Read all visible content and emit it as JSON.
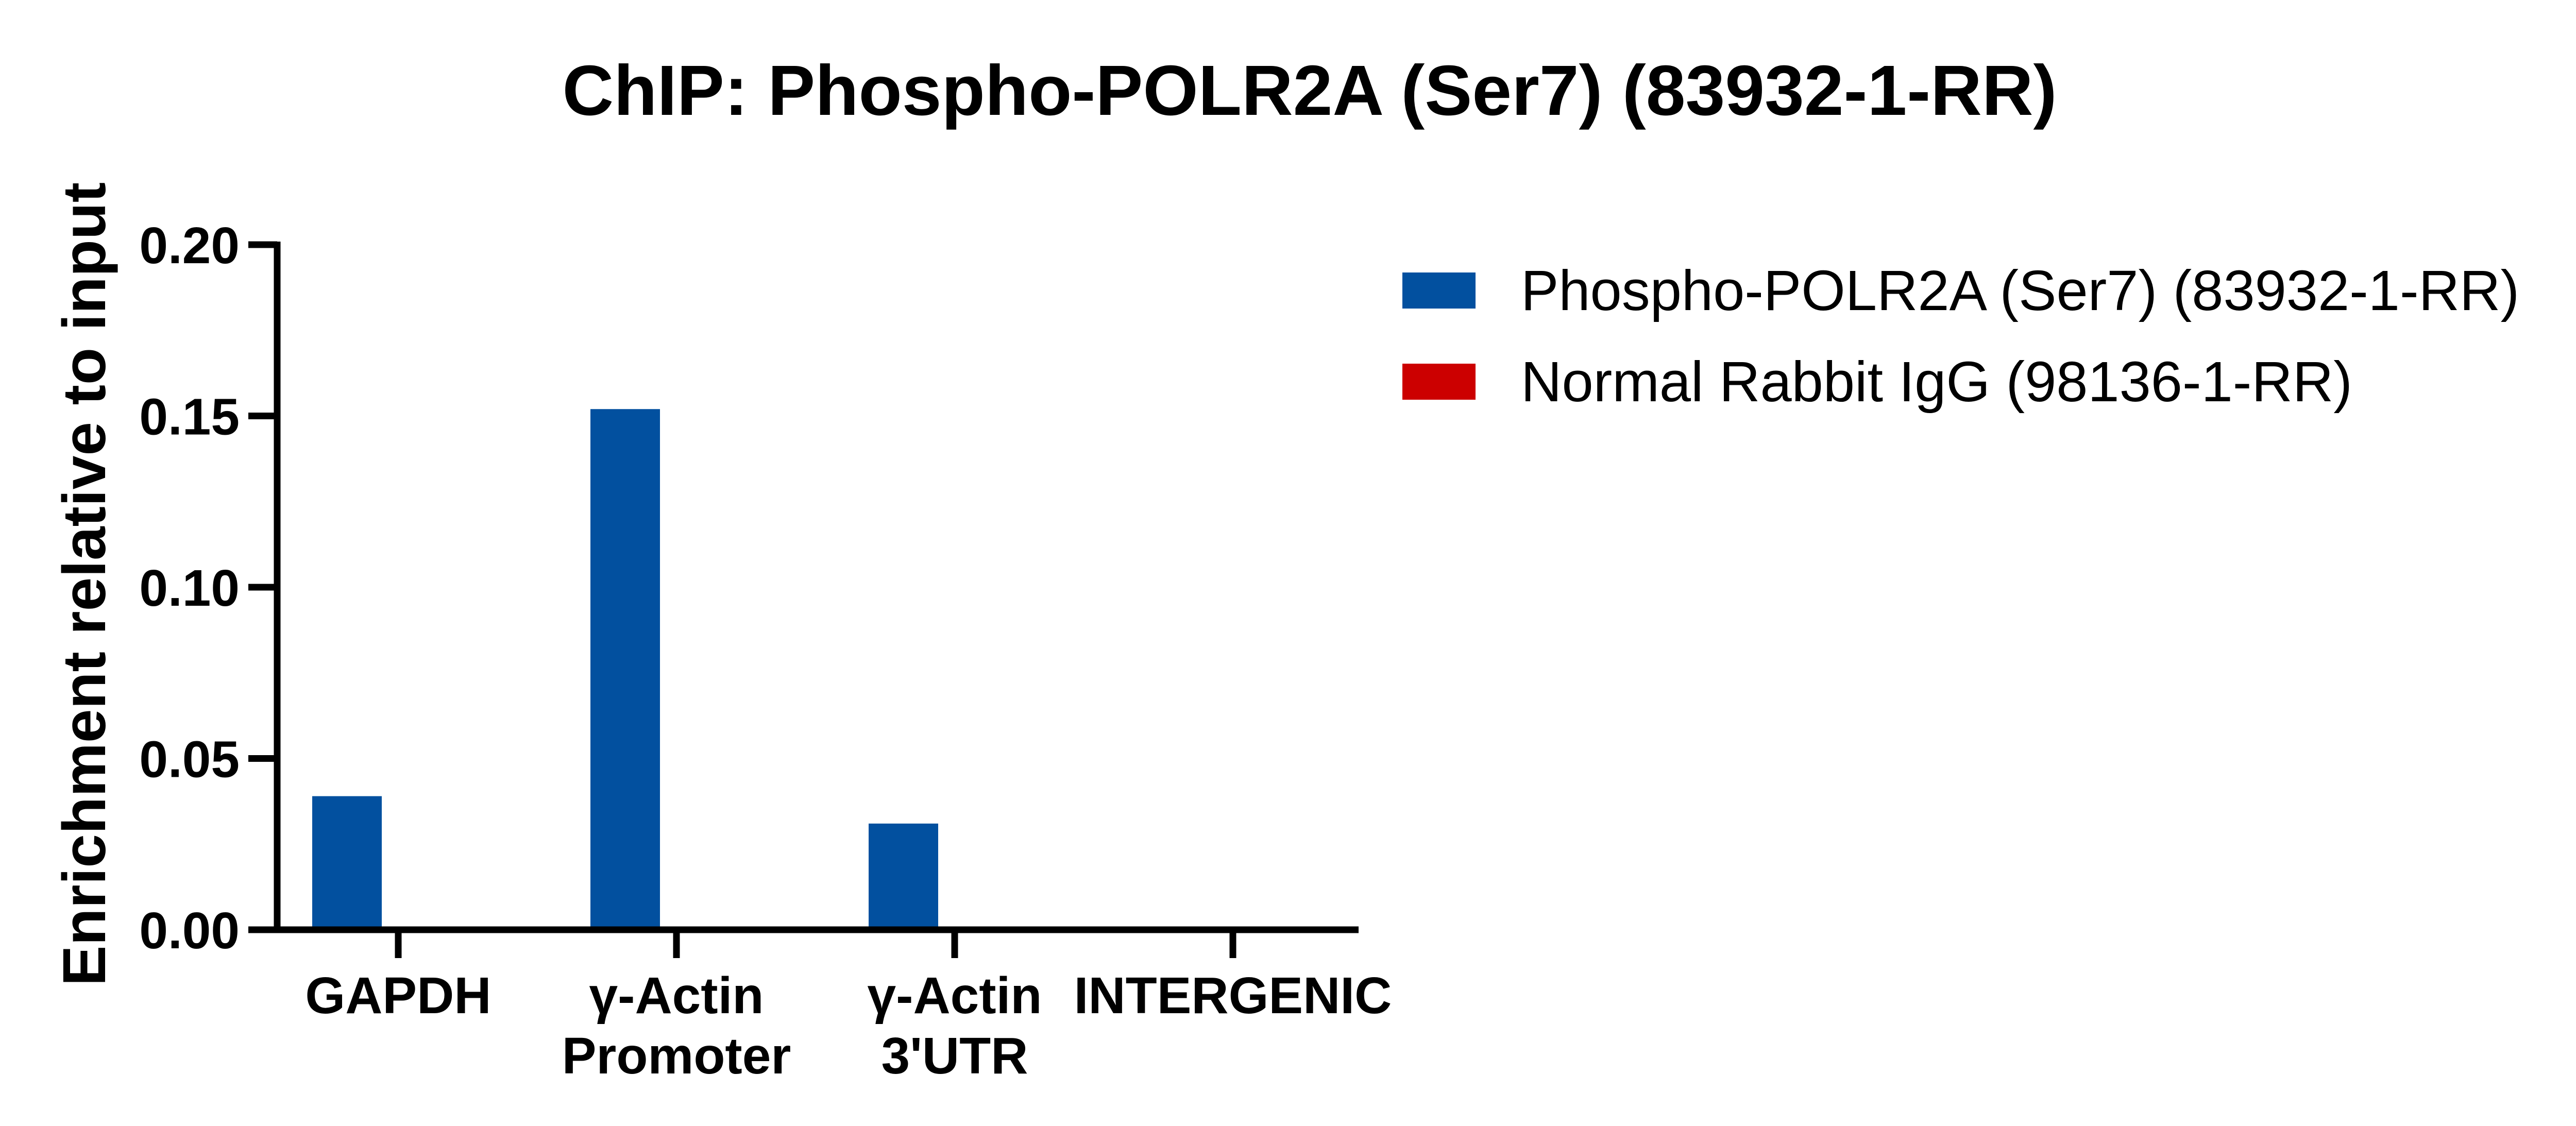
{
  "chart_data": {
    "type": "bar",
    "title": "ChIP: Phospho-POLR2A (Ser7) (83932-1-RR)",
    "xlabel": "",
    "ylabel": "Enrichment relative to input",
    "ylim": [
      0,
      0.2
    ],
    "yticks": [
      "0.00",
      "0.05",
      "0.10",
      "0.15",
      "0.20"
    ],
    "ytick_values": [
      0,
      0.05,
      0.1,
      0.15,
      0.2
    ],
    "grid": false,
    "legend_position": "right",
    "categories": [
      [
        "GAPDH"
      ],
      [
        "γ-Actin",
        "Promoter"
      ],
      [
        "γ-Actin",
        "3'UTR"
      ],
      [
        "INTERGENIC"
      ]
    ],
    "series": [
      {
        "name": "Phospho-POLR2A (Ser7) (83932-1-RR)",
        "color": "#02509F",
        "values": [
          0.039,
          0.152,
          0.031,
          0.0
        ]
      },
      {
        "name": "Normal Rabbit IgG (98136-1-RR)",
        "color": "#CC0000",
        "values": [
          0.0,
          0.0,
          0.0,
          0.0
        ]
      }
    ]
  },
  "colors": {
    "axis": "#000000",
    "background": "#FFFFFF"
  }
}
